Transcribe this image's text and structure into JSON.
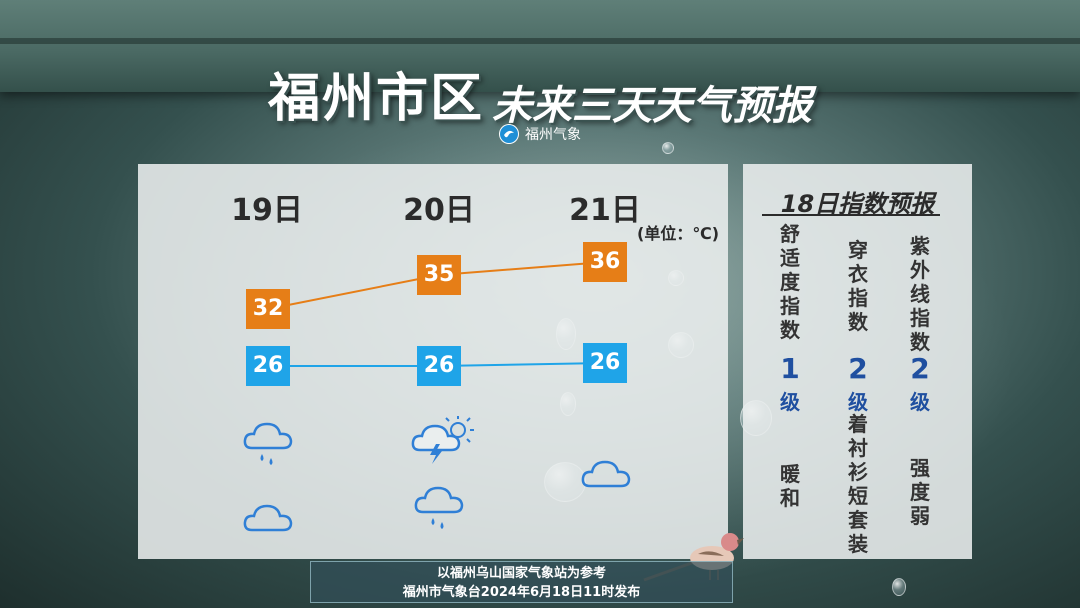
{
  "title": {
    "main": "福州市区",
    "sub": "未来三天天气预报"
  },
  "source": {
    "name": "福州气象"
  },
  "forecast": {
    "unit": "(单位：℃)",
    "days": [
      {
        "label": "19日",
        "high": "32",
        "low": "26",
        "weather": [
          "rain-cloud-icon",
          "cloud-icon"
        ]
      },
      {
        "label": "20日",
        "high": "35",
        "low": "26",
        "weather": [
          "thunder-sun-cloud-icon",
          "rain-cloud-icon"
        ]
      },
      {
        "label": "21日",
        "high": "36",
        "low": "26",
        "weather": [
          "cloud-icon"
        ]
      }
    ],
    "colors": {
      "high": "#e67e17",
      "low": "#1fa4e8"
    }
  },
  "indices": {
    "title": "18日指数预报",
    "items": [
      {
        "name": "舒适度指数",
        "level": "1",
        "level_unit": "级",
        "desc": "暖和"
      },
      {
        "name": "穿衣指数",
        "level": "2",
        "level_unit": "级",
        "desc": "着衬衫 短套装"
      },
      {
        "name": "紫外线指数",
        "level": "2",
        "level_unit": "级",
        "desc": "强度 弱"
      }
    ]
  },
  "footer": {
    "line1": "以福州乌山国家气象站为参考",
    "line2": "福州市气象台2024年6月18日11时发布"
  }
}
